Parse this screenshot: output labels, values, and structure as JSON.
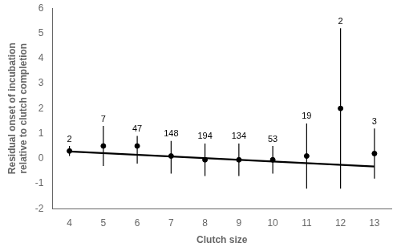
{
  "chart_data": {
    "type": "errorbar",
    "x": [
      4,
      5,
      6,
      7,
      8,
      9,
      10,
      11,
      12,
      13
    ],
    "values": [
      0.3,
      0.5,
      0.5,
      0.1,
      -0.05,
      -0.05,
      -0.05,
      0.1,
      2.0,
      0.2
    ],
    "error_upper": [
      0.2,
      0.8,
      0.4,
      0.6,
      0.65,
      0.65,
      0.55,
      1.3,
      3.2,
      1.0
    ],
    "error_lower": [
      0.2,
      0.8,
      0.7,
      0.7,
      0.65,
      0.65,
      0.55,
      1.3,
      3.2,
      1.0
    ],
    "sample_sizes": [
      2,
      7,
      47,
      148,
      194,
      134,
      53,
      19,
      2,
      3
    ],
    "color": "black",
    "marker": "circle",
    "regression": {
      "x": [
        4,
        13
      ],
      "values": [
        0.28,
        -0.32
      ],
      "color": "black"
    },
    "xlabel": "Clutch size",
    "ylabel": "Residual onset of incubation\nrelative to clutch completion",
    "xlim": [
      3.5,
      13.5
    ],
    "ylim": [
      -2,
      6
    ],
    "xticks": [
      4,
      5,
      6,
      7,
      8,
      9,
      10,
      11,
      12,
      13
    ],
    "yticks": [
      -2,
      -1,
      0,
      1,
      2,
      3,
      4,
      5,
      6
    ],
    "grid": false
  }
}
